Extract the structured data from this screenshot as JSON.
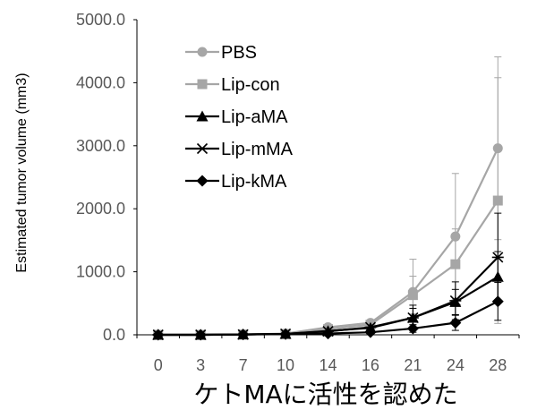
{
  "caption": "ケトMAに活性を認めた",
  "chart_data": {
    "type": "line",
    "title": "",
    "xlabel": "",
    "ylabel": "Estimated tumor volume (mm3)",
    "categories": [
      "0",
      "3",
      "7",
      "10",
      "14",
      "16",
      "21",
      "24",
      "28"
    ],
    "ylim": [
      0,
      5000
    ],
    "yticks": [
      "0.0",
      "1000.0",
      "2000.0",
      "3000.0",
      "4000.0",
      "5000.0"
    ],
    "grid": false,
    "legend_position": "top-left",
    "series": [
      {
        "name": "PBS",
        "marker": "circle",
        "color": "#a6a6a6",
        "values": [
          0,
          0,
          5,
          20,
          120,
          190,
          680,
          1560,
          2960
        ],
        "errors": [
          0,
          0,
          0,
          0,
          30,
          50,
          520,
          1000,
          1450
        ]
      },
      {
        "name": "Lip-con",
        "marker": "square",
        "color": "#a6a6a6",
        "values": [
          0,
          0,
          5,
          15,
          90,
          160,
          630,
          1120,
          2130
        ],
        "errors": [
          0,
          0,
          0,
          0,
          25,
          40,
          300,
          560,
          1950
        ]
      },
      {
        "name": "Lip-aMA",
        "marker": "triangle",
        "color": "#000000",
        "values": [
          0,
          0,
          5,
          15,
          60,
          110,
          270,
          520,
          920
        ],
        "errors": [
          0,
          0,
          0,
          0,
          20,
          30,
          150,
          200,
          400
        ]
      },
      {
        "name": "Lip-mMA",
        "marker": "star",
        "color": "#000000",
        "values": [
          0,
          0,
          5,
          15,
          55,
          120,
          270,
          540,
          1230
        ],
        "errors": [
          0,
          0,
          0,
          0,
          20,
          40,
          200,
          300,
          700
        ]
      },
      {
        "name": "Lip-kMA",
        "marker": "diamond",
        "color": "#000000",
        "values": [
          0,
          0,
          5,
          10,
          20,
          40,
          100,
          190,
          530
        ],
        "errors": [
          0,
          0,
          0,
          0,
          10,
          15,
          60,
          120,
          300
        ]
      }
    ]
  }
}
